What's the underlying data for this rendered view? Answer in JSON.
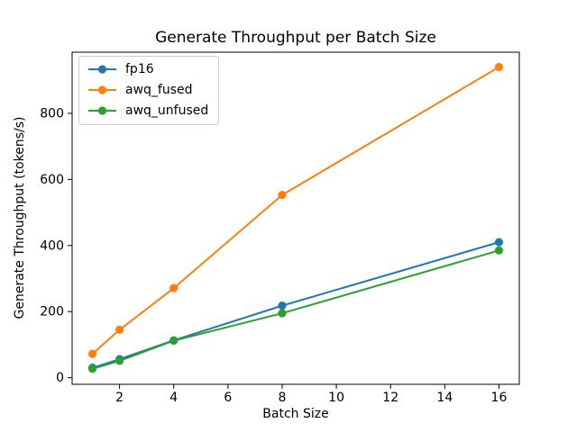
{
  "chart_data": {
    "type": "line",
    "title": "Generate Throughput per Batch Size",
    "xlabel": "Batch Size",
    "ylabel": "Generate Throughput (tokens/s)",
    "x": [
      1,
      2,
      4,
      8,
      16
    ],
    "series": [
      {
        "name": "fp16",
        "color": "#1f77b4",
        "values": [
          30,
          56,
          113,
          218,
          410
        ]
      },
      {
        "name": "awq_fused",
        "color": "#ff7f0e",
        "values": [
          72,
          145,
          271,
          553,
          940
        ]
      },
      {
        "name": "awq_unfused",
        "color": "#2ca02c",
        "values": [
          27,
          51,
          112,
          195,
          385
        ]
      }
    ],
    "xticks": [
      2,
      4,
      6,
      8,
      10,
      12,
      14,
      16
    ],
    "yticks": [
      0,
      200,
      400,
      600,
      800
    ],
    "xlim": [
      0.25,
      16.75
    ],
    "ylim": [
      -20,
      985
    ],
    "grid": false,
    "marker": "o",
    "legend_position": "upper left",
    "line_color_hex": {
      "fp16": "#1f77b4",
      "awq_fused": "#ff7f0e",
      "awq_unfused": "#2ca02c"
    },
    "axis_color": "#000000",
    "background_color": "#ffffff"
  }
}
